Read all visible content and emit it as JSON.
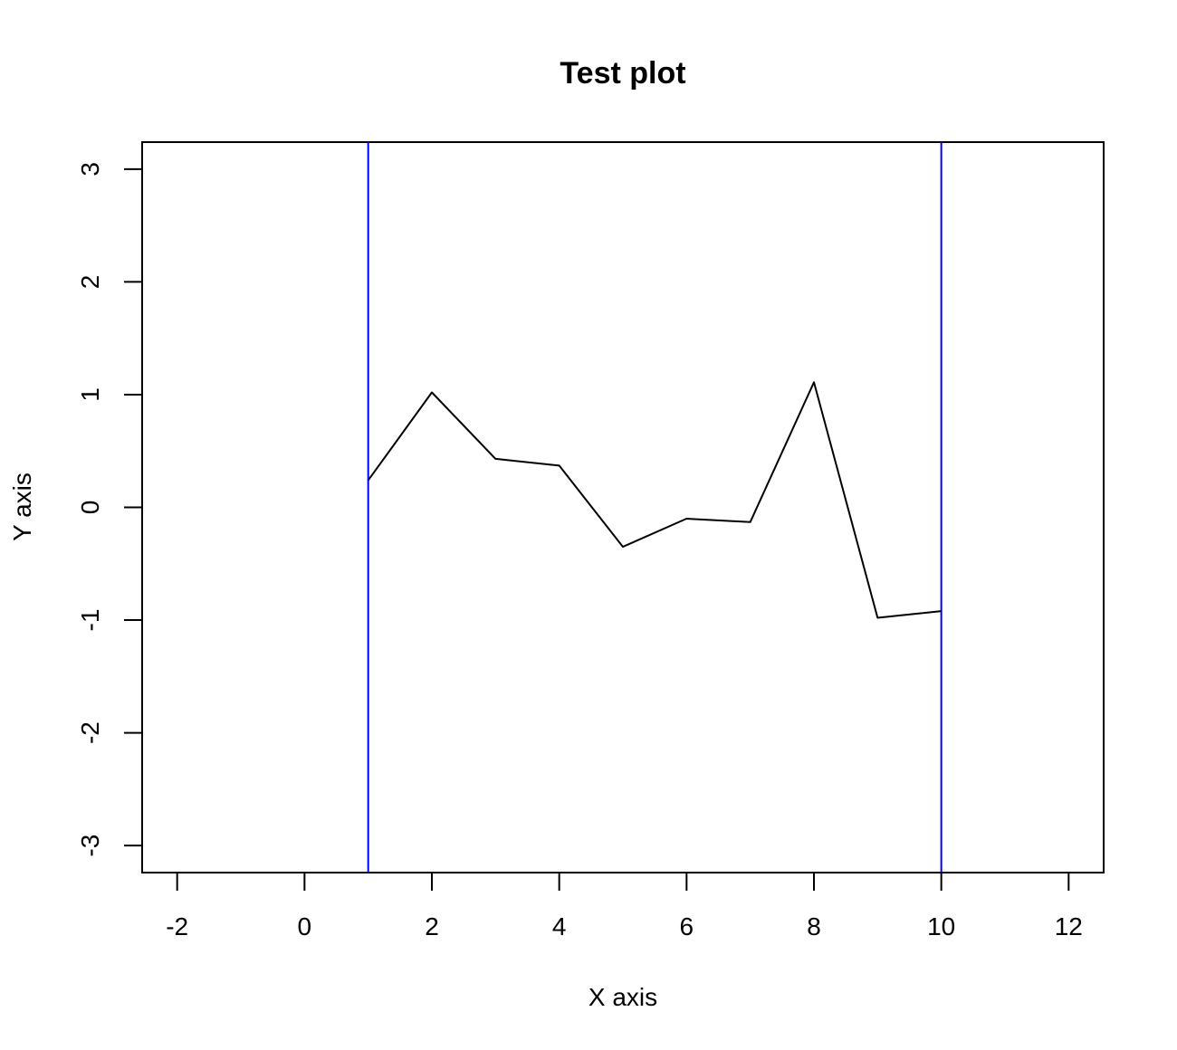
{
  "chart_data": {
    "type": "line",
    "title": "Test plot",
    "xlabel": "X axis",
    "ylabel": "Y axis",
    "xlim": [
      -2.55,
      12.55
    ],
    "ylim": [
      -3.24,
      3.24
    ],
    "x_ticks": [
      -2,
      0,
      2,
      4,
      6,
      8,
      10,
      12
    ],
    "x_tick_labels": [
      "-2",
      "0",
      "2",
      "4",
      "6",
      "8",
      "10",
      "12"
    ],
    "y_ticks": [
      -3,
      -2,
      -1,
      0,
      1,
      2,
      3
    ],
    "y_tick_labels": [
      "-3",
      "-2",
      "-1",
      "0",
      "1",
      "2",
      "3"
    ],
    "grid": false,
    "series": [
      {
        "x": [
          1,
          2,
          3,
          4,
          5,
          6,
          7,
          8,
          9,
          10
        ],
        "y": [
          0.24,
          1.02,
          0.43,
          0.37,
          -0.35,
          -0.1,
          -0.13,
          1.11,
          -0.98,
          -0.92
        ],
        "color": "#000000"
      }
    ],
    "vertical_lines": [
      {
        "x": 1,
        "color": "#0000ff"
      },
      {
        "x": 10,
        "color": "#0000ff"
      }
    ]
  }
}
